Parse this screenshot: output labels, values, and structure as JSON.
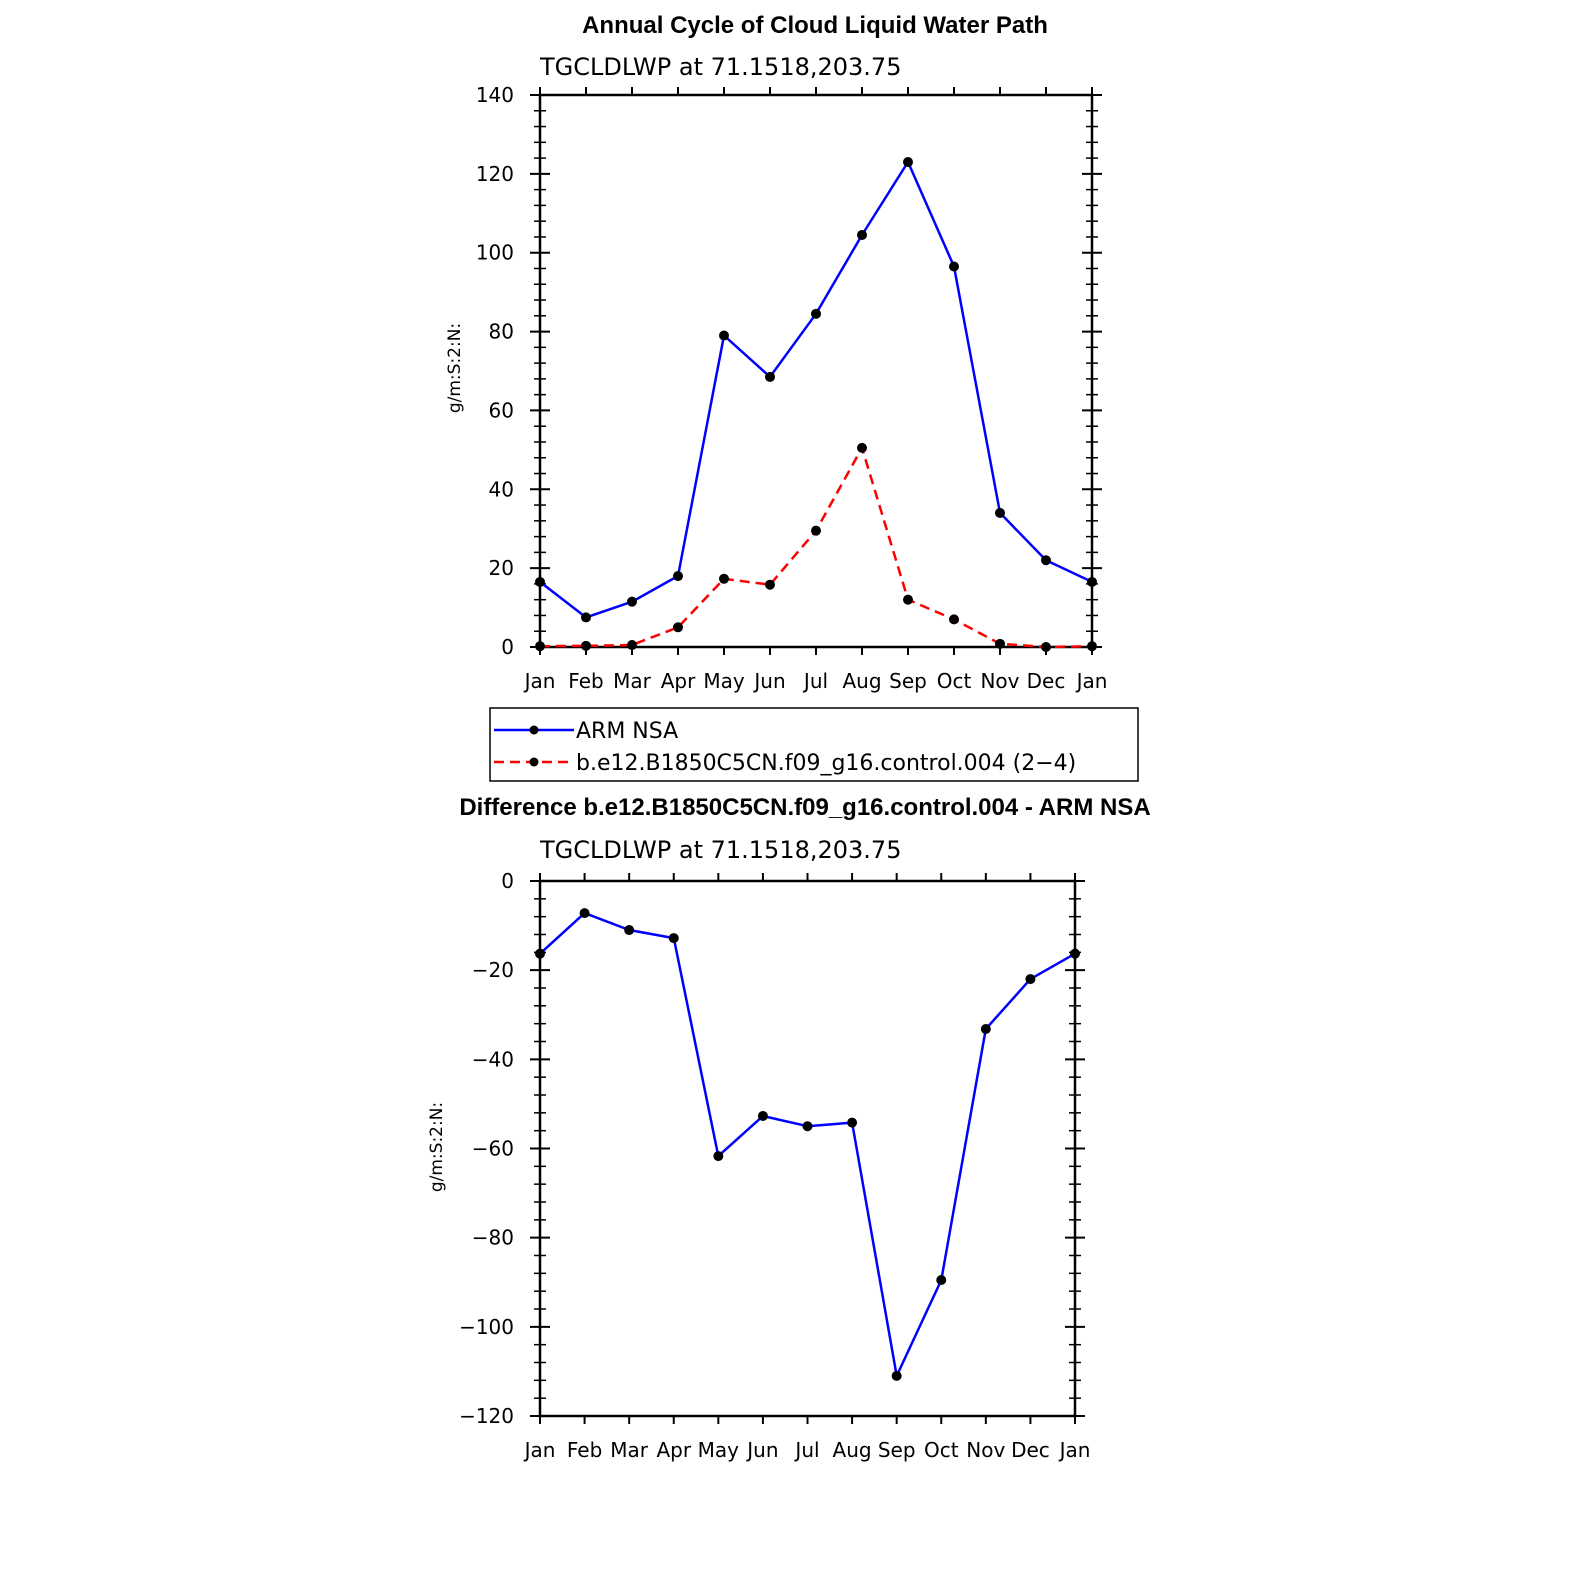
{
  "chart_data": [
    {
      "type": "line",
      "title": "Annual Cycle of Cloud Liquid Water Path",
      "subtitle": "TGCLDLWP  at  71.1518,203.75",
      "ylabel": "g/m:S:2:N:",
      "xlabel": "",
      "categories": [
        "Jan",
        "Feb",
        "Mar",
        "Apr",
        "May",
        "Jun",
        "Jul",
        "Aug",
        "Sep",
        "Oct",
        "Nov",
        "Dec",
        "Jan"
      ],
      "ylim": [
        0,
        140
      ],
      "yticks": [
        0,
        20,
        40,
        60,
        80,
        100,
        120,
        140
      ],
      "series": [
        {
          "name": "ARM  NSA",
          "color": "#0000ff",
          "dash": "solid",
          "values": [
            16.5,
            7.5,
            11.5,
            18,
            79,
            68.5,
            84.5,
            104.5,
            123,
            96.5,
            34,
            22,
            16.5
          ]
        },
        {
          "name": "b.e12.B1850C5CN.f09_g16.control.004  (2−4)",
          "color": "#ff0000",
          "dash": "dashed",
          "values": [
            0.2,
            0.3,
            0.5,
            5,
            17.3,
            15.8,
            29.5,
            50.5,
            12,
            7,
            0.8,
            0,
            0.2
          ]
        }
      ],
      "legend": "below"
    },
    {
      "type": "line",
      "title": "Difference b.e12.B1850C5CN.f09_g16.control.004 - ARM NSA",
      "subtitle": "TGCLDLWP  at  71.1518,203.75",
      "ylabel": "g/m:S:2:N:",
      "xlabel": "",
      "categories": [
        "Jan",
        "Feb",
        "Mar",
        "Apr",
        "May",
        "Jun",
        "Jul",
        "Aug",
        "Sep",
        "Oct",
        "Nov",
        "Dec",
        "Jan"
      ],
      "ylim": [
        -120,
        0
      ],
      "yticks": [
        0,
        -20,
        -40,
        -60,
        -80,
        -100,
        -120
      ],
      "ytick_labels": [
        "0",
        "−20",
        "−40",
        "−60",
        "−80",
        "−100",
        "−120"
      ],
      "series": [
        {
          "color": "#0000ff",
          "dash": "solid",
          "values": [
            -16.3,
            -7.2,
            -11,
            -12.8,
            -61.7,
            -52.7,
            -55,
            -54.2,
            -111,
            -89.5,
            -33.2,
            -22,
            -16.3
          ]
        }
      ]
    }
  ]
}
